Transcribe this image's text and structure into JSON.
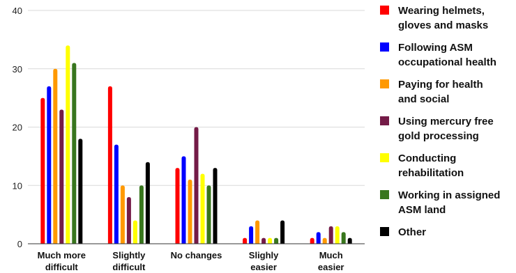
{
  "chart_data": {
    "type": "bar",
    "categories": [
      [
        "Much more",
        "difficult"
      ],
      [
        "Slightly",
        "difficult"
      ],
      [
        "No changes"
      ],
      [
        "Slighly",
        "easier"
      ],
      [
        "Much",
        "easier"
      ]
    ],
    "series": [
      {
        "name": [
          "Wearing helmets,",
          "gloves and masks"
        ],
        "color": "#ff0000",
        "values": [
          25,
          27,
          13,
          1,
          1
        ]
      },
      {
        "name": [
          "Following ASM",
          "occupational health"
        ],
        "color": "#0000ff",
        "values": [
          27,
          17,
          15,
          3,
          2
        ]
      },
      {
        "name": [
          "Paying for health",
          "and social"
        ],
        "color": "#ff9900",
        "values": [
          30,
          10,
          11,
          4,
          1
        ]
      },
      {
        "name": [
          "Using mercury free",
          "gold processing"
        ],
        "color": "#741b47",
        "values": [
          23,
          8,
          20,
          1,
          3
        ]
      },
      {
        "name": [
          "Conducting",
          "rehabilitation"
        ],
        "color": "#ffff00",
        "values": [
          34,
          4,
          12,
          1,
          3
        ]
      },
      {
        "name": [
          "Working in assigned",
          "ASM land"
        ],
        "color": "#38761d",
        "values": [
          31,
          10,
          10,
          1,
          2
        ]
      },
      {
        "name": [
          "Other"
        ],
        "color": "#000000",
        "values": [
          18,
          14,
          13,
          4,
          1
        ]
      }
    ],
    "ylim": [
      0,
      40
    ],
    "yticks": [
      0,
      10,
      20,
      30,
      40
    ],
    "grid": true,
    "legend": "right",
    "title": "",
    "xlabel": "",
    "ylabel": ""
  }
}
